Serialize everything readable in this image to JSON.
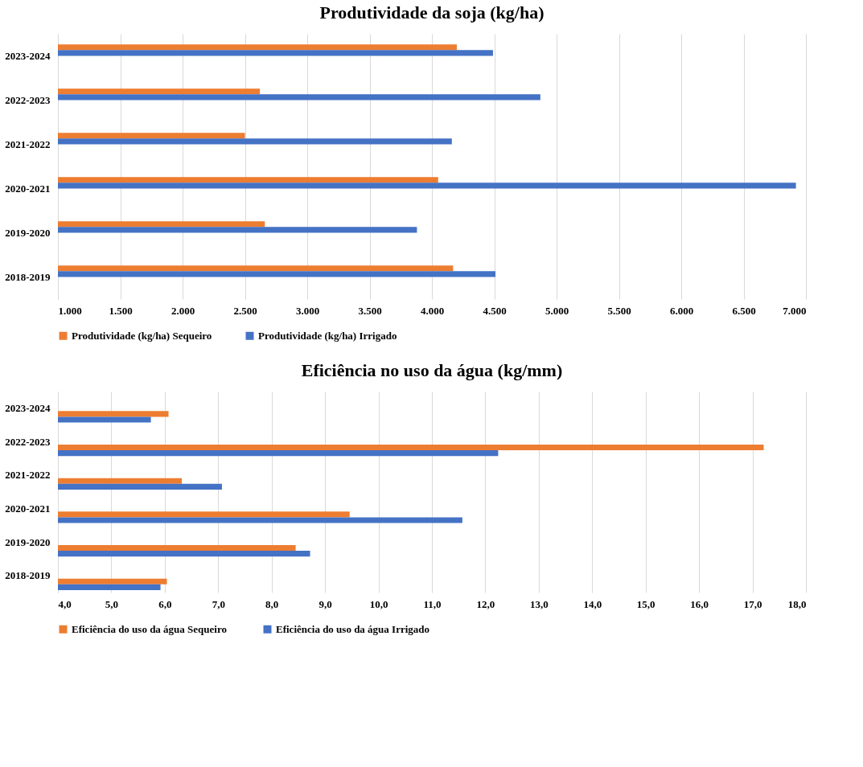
{
  "chart_data": [
    {
      "type": "bar",
      "orientation": "horizontal",
      "title": "Produtividade  da soja (kg/ha)",
      "categories": [
        "2023-2024",
        "2022-2023",
        "2021-2022",
        "2020-2021",
        "2019-2020",
        "2018-2019"
      ],
      "series": [
        {
          "name": "Produtividade (kg/ha) Sequeiro",
          "color": "#ed7d31",
          "values": [
            4200,
            2620,
            2500,
            4050,
            2660,
            4170
          ]
        },
        {
          "name": "Produtividade (kg/ha) Irrigado",
          "color": "#4472c4",
          "values": [
            4490,
            4870,
            4160,
            6920,
            3880,
            4510
          ]
        }
      ],
      "xlim": [
        1000,
        7000
      ],
      "xticks": [
        {
          "value": 1000,
          "label": "1.000"
        },
        {
          "value": 1500,
          "label": "1.500"
        },
        {
          "value": 2000,
          "label": "2.000"
        },
        {
          "value": 2500,
          "label": "2.500"
        },
        {
          "value": 3000,
          "label": "3.000"
        },
        {
          "value": 3500,
          "label": "3.500"
        },
        {
          "value": 4000,
          "label": "4.000"
        },
        {
          "value": 4500,
          "label": "4.500"
        },
        {
          "value": 5000,
          "label": "5.000"
        },
        {
          "value": 5500,
          "label": "5.500"
        },
        {
          "value": 6000,
          "label": "6.000"
        },
        {
          "value": 6500,
          "label": "6.500"
        },
        {
          "value": 7000,
          "label": "7.000"
        }
      ],
      "grid": "x",
      "legend": "bottom"
    },
    {
      "type": "bar",
      "orientation": "horizontal",
      "title": "Eficiência no uso da água (kg/mm)",
      "categories": [
        "2023-2024",
        "2022-2023",
        "2021-2022",
        "2020-2021",
        "2019-2020",
        "2018-2019"
      ],
      "series": [
        {
          "name": "Eficiência do uso da água  Sequeiro",
          "color": "#ed7d31",
          "values": [
            6.07,
            17.21,
            6.32,
            9.46,
            8.45,
            6.04
          ]
        },
        {
          "name": "Eficiência do uso da água  Irrigado",
          "color": "#4472c4",
          "values": [
            5.74,
            12.24,
            7.07,
            11.57,
            8.72,
            5.92
          ]
        }
      ],
      "xlim": [
        4,
        18
      ],
      "xticks": [
        {
          "value": 4,
          "label": "4,0"
        },
        {
          "value": 5,
          "label": "5,0"
        },
        {
          "value": 6,
          "label": "6,0"
        },
        {
          "value": 7,
          "label": "7,0"
        },
        {
          "value": 8,
          "label": "8,0"
        },
        {
          "value": 9,
          "label": "9,0"
        },
        {
          "value": 10,
          "label": "10,0"
        },
        {
          "value": 11,
          "label": "11,0"
        },
        {
          "value": 12,
          "label": "12,0"
        },
        {
          "value": 13,
          "label": "13,0"
        },
        {
          "value": 14,
          "label": "14,0"
        },
        {
          "value": 15,
          "label": "15,0"
        },
        {
          "value": 16,
          "label": "16,0"
        },
        {
          "value": 17,
          "label": "17,0"
        },
        {
          "value": 18,
          "label": "18,0"
        }
      ],
      "grid": "x",
      "legend": "bottom"
    }
  ]
}
